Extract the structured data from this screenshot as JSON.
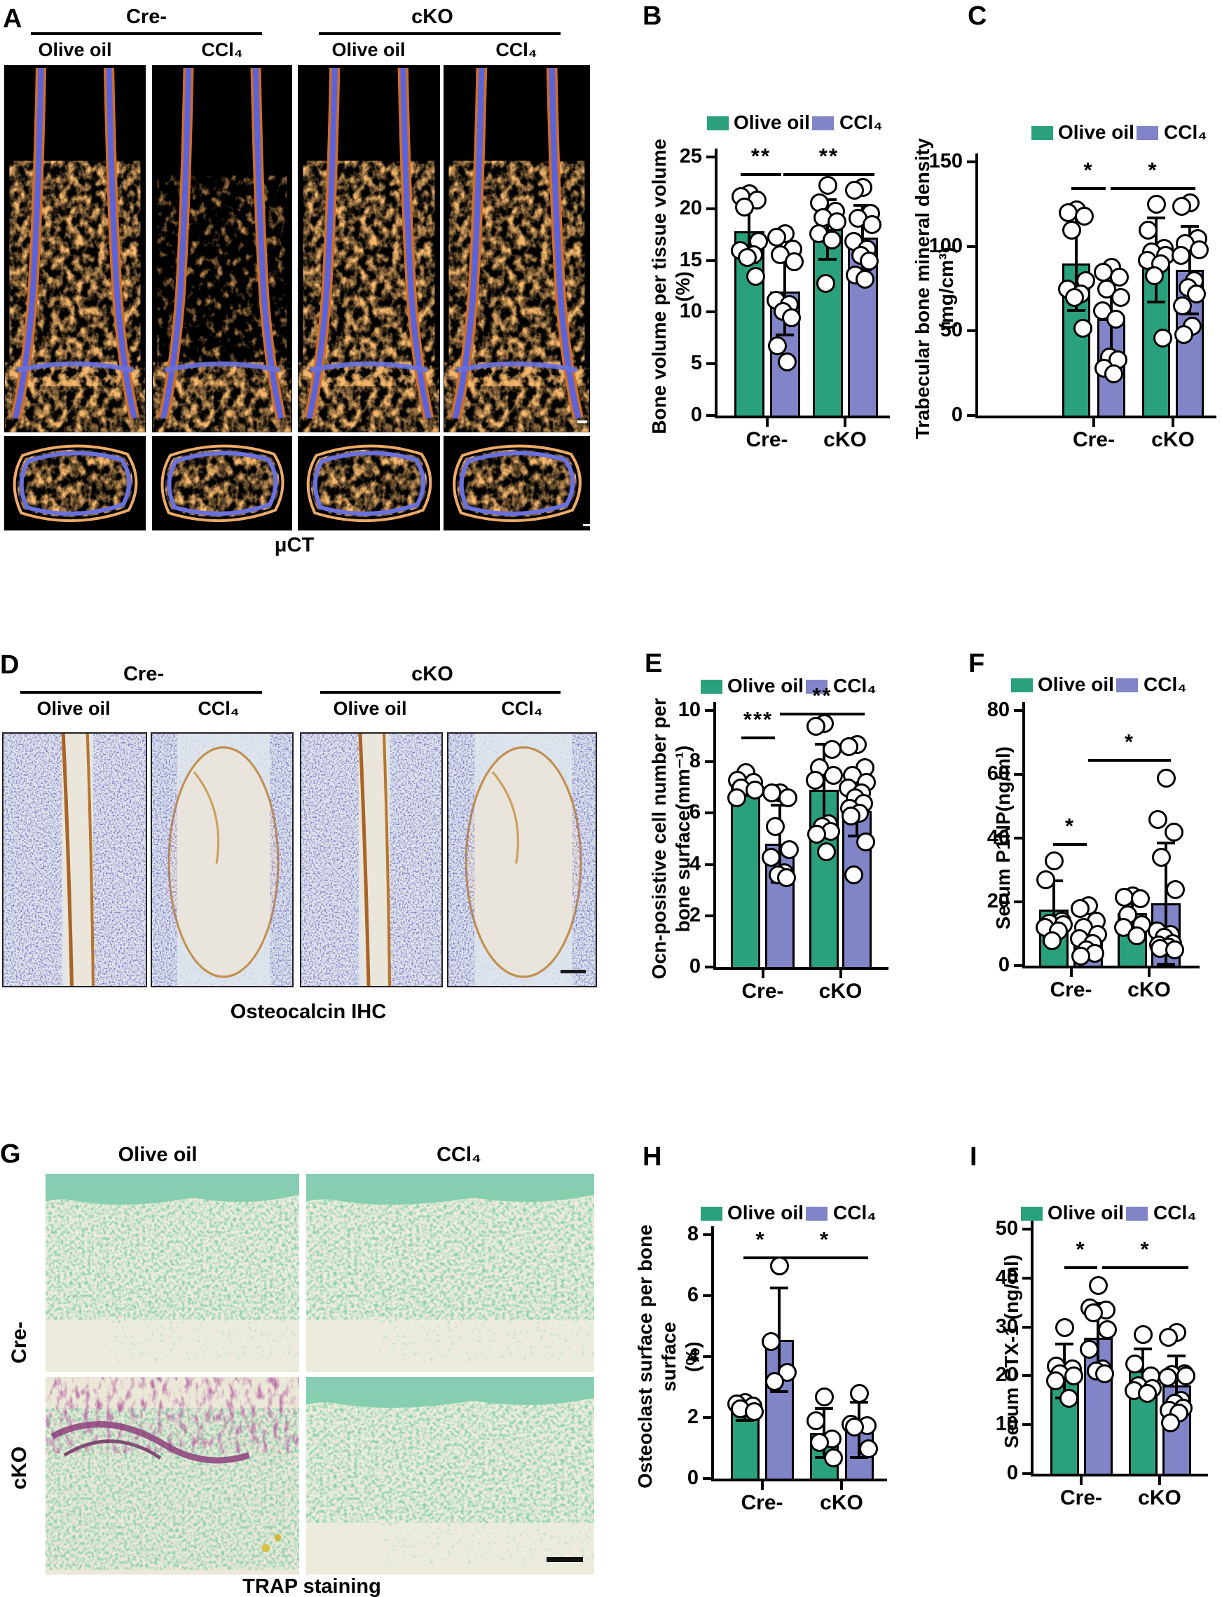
{
  "figure": {
    "colors": {
      "olive_oil": "#2AA17C",
      "ccl4": "#8185C8",
      "axis": "#000000"
    },
    "legend": {
      "olive_oil": "Olive oil",
      "ccl4": "CCl₄"
    }
  },
  "panel_a": {
    "label": "A",
    "groups": [
      {
        "label": "Cre-",
        "cols": [
          "Olive oil",
          "CCl₄"
        ]
      },
      {
        "label": "cKO",
        "cols": [
          "Olive oil",
          "CCl₄"
        ]
      }
    ],
    "caption": "μCT"
  },
  "panel_d": {
    "label": "D",
    "groups": [
      {
        "label": "Cre-",
        "cols": [
          "Olive oil",
          "CCl₄"
        ]
      },
      {
        "label": "cKO",
        "cols": [
          "Olive oil",
          "CCl₄"
        ]
      }
    ],
    "caption": "Osteocalcin IHC"
  },
  "panel_g": {
    "label": "G",
    "col_labels": [
      "Olive oil",
      "CCl₄"
    ],
    "row_labels": [
      "Cre-",
      "cKO"
    ],
    "caption": "TRAP staining"
  },
  "chart_data": [
    {
      "id": "B",
      "panel_label": "B",
      "type": "bar",
      "ylabel": [
        "Bone volume per tissue volume",
        "(%)"
      ],
      "ylim": [
        0,
        25
      ],
      "yticks": [
        0,
        5,
        10,
        15,
        20,
        25
      ],
      "groups": [
        "Cre-",
        "cKO"
      ],
      "series": [
        "Olive oil",
        "CCl₄"
      ],
      "bars": [
        {
          "group": "Cre-",
          "series": "Olive oil",
          "value": 17.8,
          "err": 3.0,
          "points": [
            21.5,
            21.2,
            20.9,
            20.2,
            16.9,
            16.0,
            15.6,
            15.3,
            13.5
          ]
        },
        {
          "group": "Cre-",
          "series": "CCl₄",
          "value": 12.0,
          "err": 4.2,
          "points": [
            17.6,
            17.3,
            16.1,
            15.6,
            14.9,
            11.2,
            10.8,
            10.1,
            9.5,
            6.8,
            5.2
          ]
        },
        {
          "group": "cKO",
          "series": "Olive oil",
          "value": 18.0,
          "err": 2.9,
          "points": [
            22.3,
            20.6,
            19.8,
            19.2,
            18.8,
            17.6,
            17.0,
            12.8
          ]
        },
        {
          "group": "cKO",
          "series": "CCl₄",
          "value": 17.2,
          "err": 3.1,
          "points": [
            22.1,
            21.8,
            19.6,
            19.1,
            18.5,
            16.9,
            16.1,
            15.5,
            15.0,
            13.6,
            13.2
          ]
        }
      ],
      "significance": [
        {
          "between": [
            "Cre-/Olive oil",
            "Cre-/CCl₄"
          ],
          "label": "**"
        },
        {
          "between": [
            "Cre-/CCl₄",
            "cKO/CCl₄"
          ],
          "label": "**"
        }
      ]
    },
    {
      "id": "C",
      "panel_label": "C",
      "type": "bar",
      "ylabel": [
        "Trabecular bone mineral density",
        "(mg/cm³)"
      ],
      "ylim": [
        0,
        150
      ],
      "yticks": [
        0,
        50,
        100,
        150
      ],
      "groups": [
        "Cre-",
        "cKO"
      ],
      "series": [
        "Olive oil",
        "CCl₄"
      ],
      "bars": [
        {
          "group": "Cre-",
          "series": "Olive oil",
          "value": 90,
          "err": 28,
          "points": [
            122,
            120,
            118,
            110,
            80,
            75,
            72,
            70,
            52
          ]
        },
        {
          "group": "Cre-",
          "series": "CCl₄",
          "value": 57,
          "err": 30,
          "points": [
            88,
            85,
            82,
            75,
            70,
            62,
            57,
            35,
            33,
            28,
            25
          ]
        },
        {
          "group": "cKO",
          "series": "Olive oil",
          "value": 92,
          "err": 25,
          "points": [
            125,
            110,
            99,
            97,
            95,
            92,
            90,
            83,
            46
          ]
        },
        {
          "group": "cKO",
          "series": "CCl₄",
          "value": 86,
          "err": 26,
          "points": [
            126,
            124,
            105,
            102,
            98,
            95,
            80,
            76,
            72,
            65,
            53,
            48
          ]
        }
      ],
      "significance": [
        {
          "between": [
            "Cre-/Olive oil",
            "Cre-/CCl₄"
          ],
          "label": "*"
        },
        {
          "between": [
            "Cre-/CCl₄",
            "cKO/CCl₄"
          ],
          "label": "*"
        }
      ]
    },
    {
      "id": "E",
      "panel_label": "E",
      "type": "bar",
      "ylabel": [
        "Ocn-posistive cell number per",
        "bone surface(mm⁻¹)"
      ],
      "ylim": [
        0,
        10
      ],
      "yticks": [
        0,
        2,
        4,
        6,
        8,
        10
      ],
      "groups": [
        "Cre-",
        "cKO"
      ],
      "series": [
        "Olive oil",
        "CCl₄"
      ],
      "bars": [
        {
          "group": "Cre-",
          "series": "Olive oil",
          "value": 7.1,
          "err": 0.4,
          "points": [
            7.6,
            7.3,
            7.2,
            7.0,
            6.9,
            6.6
          ]
        },
        {
          "group": "Cre-",
          "series": "CCl₄",
          "value": 4.8,
          "err": 1.5,
          "points": [
            6.8,
            6.8,
            6.6,
            5.5,
            4.6,
            4.3,
            3.7,
            3.6,
            3.5
          ]
        },
        {
          "group": "cKO",
          "series": "Olive oil",
          "value": 6.9,
          "err": 1.8,
          "points": [
            9.5,
            9.4,
            8.5,
            7.8,
            7.5,
            7.3,
            5.6,
            5.5,
            5.3,
            5.2,
            4.5
          ]
        },
        {
          "group": "cKO",
          "series": "CCl₄",
          "value": 6.1,
          "err": 1.0,
          "points": [
            8.7,
            8.6,
            7.8,
            7.5,
            7.2,
            7.0,
            6.8,
            6.6,
            6.4,
            6.2,
            6.0,
            5.9,
            4.9,
            3.6
          ]
        }
      ],
      "significance": [
        {
          "between": [
            "Cre-/Olive oil",
            "Cre-/CCl₄"
          ],
          "label": "***"
        },
        {
          "between": [
            "Cre-/CCl₄",
            "cKO/CCl₄"
          ],
          "label": "**"
        }
      ]
    },
    {
      "id": "F",
      "panel_label": "F",
      "type": "bar",
      "ylabel": [
        "Serum P1NP(ng/ml)"
      ],
      "ylim": [
        0,
        80
      ],
      "yticks": [
        0,
        20,
        40,
        60,
        80
      ],
      "groups": [
        "Cre-",
        "cKO"
      ],
      "series": [
        "Olive oil",
        "CCl₄"
      ],
      "bars": [
        {
          "group": "Cre-",
          "series": "Olive oil",
          "value": 17.5,
          "err": 9,
          "points": [
            33,
            27,
            14,
            13.5,
            13,
            12,
            11,
            8
          ]
        },
        {
          "group": "Cre-",
          "series": "CCl₄",
          "value": 7.5,
          "err": 5.5,
          "points": [
            19,
            18,
            14,
            12,
            10,
            8.5,
            7,
            5,
            4,
            3
          ]
        },
        {
          "group": "cKO",
          "series": "Olive oil",
          "value": 16.5,
          "err": 5.5,
          "points": [
            22,
            21.5,
            21,
            16,
            13,
            12,
            9.5
          ]
        },
        {
          "group": "cKO",
          "series": "CCl₄",
          "value": 19.5,
          "err": 19,
          "points": [
            59,
            46,
            42,
            34,
            24,
            11,
            10,
            9,
            7,
            6.5,
            6,
            5.5,
            5
          ]
        }
      ],
      "significance": [
        {
          "between": [
            "Cre-/Olive oil",
            "Cre-/CCl₄"
          ],
          "label": "*"
        },
        {
          "between": [
            "Cre-/CCl₄",
            "cKO/CCl₄"
          ],
          "label": "*"
        }
      ]
    },
    {
      "id": "H",
      "panel_label": "H",
      "type": "bar",
      "ylabel": [
        "Osteoclast surface per bone surface",
        "(%)"
      ],
      "ylim": [
        0,
        8
      ],
      "yticks": [
        0,
        2,
        4,
        6,
        8
      ],
      "groups": [
        "Cre-",
        "cKO"
      ],
      "series": [
        "Olive oil",
        "CCl₄"
      ],
      "bars": [
        {
          "group": "Cre-",
          "series": "Olive oil",
          "value": 2.2,
          "err": 0.3,
          "points": [
            2.5,
            2.45,
            2.4,
            2.3,
            2.2
          ]
        },
        {
          "group": "Cre-",
          "series": "CCl₄",
          "value": 4.55,
          "err": 1.7,
          "points": [
            7.0,
            4.5,
            3.5,
            3.2
          ]
        },
        {
          "group": "cKO",
          "series": "Olive oil",
          "value": 1.5,
          "err": 0.8,
          "points": [
            2.7,
            1.9,
            1.3,
            1.2,
            0.7
          ]
        },
        {
          "group": "cKO",
          "series": "CCl₄",
          "value": 1.6,
          "err": 0.9,
          "points": [
            2.8,
            1.8,
            1.75,
            1.7,
            1.0
          ]
        }
      ],
      "significance": [
        {
          "between": [
            "Cre-/Olive oil",
            "Cre-/CCl₄"
          ],
          "label": "*"
        },
        {
          "between": [
            "Cre-/CCl₄",
            "cKO/CCl₄"
          ],
          "label": "*"
        }
      ]
    },
    {
      "id": "I",
      "panel_label": "I",
      "type": "bar",
      "ylabel": [
        "Serum CTX-1 (ng/ml)"
      ],
      "ylim": [
        0,
        50
      ],
      "yticks": [
        0,
        10,
        20,
        30,
        40,
        50
      ],
      "groups": [
        "Cre-",
        "cKO"
      ],
      "series": [
        "Olive oil",
        "CCl₄"
      ],
      "bars": [
        {
          "group": "Cre-",
          "series": "Olive oil",
          "value": 21,
          "err": 5.5,
          "points": [
            30,
            22,
            21.5,
            20.5,
            20,
            19,
            15.5
          ]
        },
        {
          "group": "Cre-",
          "series": "CCl₄",
          "value": 27.8,
          "err": 7,
          "points": [
            38.5,
            34,
            33.5,
            33,
            29.5,
            25.5,
            21.5,
            21,
            20.5
          ]
        },
        {
          "group": "cKO",
          "series": "Olive oil",
          "value": 21,
          "err": 4.5,
          "points": [
            28.5,
            22.5,
            20,
            18,
            17.5,
            17,
            16.5
          ]
        },
        {
          "group": "cKO",
          "series": "CCl₄",
          "value": 18,
          "err": 6,
          "points": [
            29,
            28,
            20.5,
            20.3,
            20,
            19.8,
            15,
            14.5,
            13.5,
            13,
            12.5,
            10.5
          ]
        }
      ],
      "significance": [
        {
          "between": [
            "Cre-/Olive oil",
            "Cre-/CCl₄"
          ],
          "label": "*"
        },
        {
          "between": [
            "Cre-/CCl₄",
            "cKO/CCl₄"
          ],
          "label": "*"
        }
      ]
    }
  ]
}
